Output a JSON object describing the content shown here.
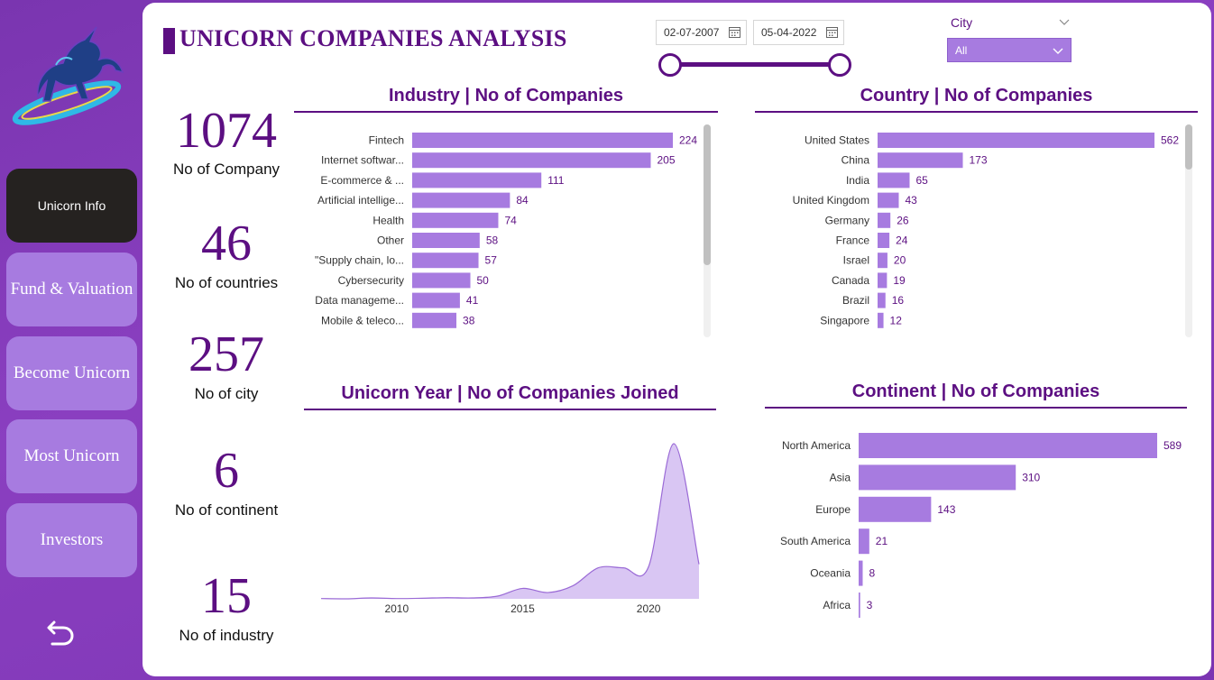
{
  "header": {
    "title": "UNICORN COMPANIES ANALYSIS"
  },
  "date_filter": {
    "start": "02-07-2007",
    "end": "05-04-2022"
  },
  "city_filter": {
    "label": "City",
    "selected": "All"
  },
  "sidebar": {
    "items": [
      {
        "label": "Unicorn Info",
        "active": true
      },
      {
        "label": "Fund & Valuation"
      },
      {
        "label": "Become Unicorn"
      },
      {
        "label": "Most Unicorn"
      },
      {
        "label": "Investors"
      }
    ]
  },
  "kpis": [
    {
      "value": "1074",
      "label": "No of Company"
    },
    {
      "value": "46",
      "label": "No of countries"
    },
    {
      "value": "257",
      "label": "No of city"
    },
    {
      "value": "6",
      "label": "No of continent"
    },
    {
      "value": "15",
      "label": "No of industry"
    }
  ],
  "colors": {
    "accent": "#5c0f82",
    "bar": "#a77be0",
    "area": "#d9c6f3",
    "sidebar": "#7a35b0"
  },
  "chart_data": [
    {
      "type": "bar",
      "orientation": "horizontal",
      "title": "Industry | No of Companies",
      "categories": [
        "Fintech",
        "Internet softwar...",
        "E-commerce & ...",
        "Artificial intellige...",
        "Health",
        "Other",
        "\"Supply chain, lo...",
        "Cybersecurity",
        "Data manageme...",
        "Mobile & teleco..."
      ],
      "values": [
        224,
        205,
        111,
        84,
        74,
        58,
        57,
        50,
        41,
        38
      ]
    },
    {
      "type": "bar",
      "orientation": "horizontal",
      "title": "Country | No of Companies",
      "categories": [
        "United States",
        "China",
        "India",
        "United Kingdom",
        "Germany",
        "France",
        "Israel",
        "Canada",
        "Brazil",
        "Singapore"
      ],
      "values": [
        562,
        173,
        65,
        43,
        26,
        24,
        20,
        19,
        16,
        12
      ]
    },
    {
      "type": "area",
      "title": "Unicorn Year | No of Companies Joined",
      "x": [
        2007,
        2008,
        2009,
        2010,
        2011,
        2012,
        2013,
        2014,
        2015,
        2016,
        2017,
        2018,
        2019,
        2020,
        2021,
        2022
      ],
      "values": [
        1,
        0,
        3,
        1,
        2,
        4,
        3,
        9,
        35,
        21,
        44,
        104,
        104,
        108,
        520,
        116
      ],
      "xticks": [
        "2010",
        "2015",
        "2020"
      ]
    },
    {
      "type": "bar",
      "orientation": "horizontal",
      "title": "Continent | No of Companies",
      "categories": [
        "North America",
        "Asia",
        "Europe",
        "South America",
        "Oceania",
        "Africa"
      ],
      "values": [
        589,
        310,
        143,
        21,
        8,
        3
      ]
    }
  ]
}
